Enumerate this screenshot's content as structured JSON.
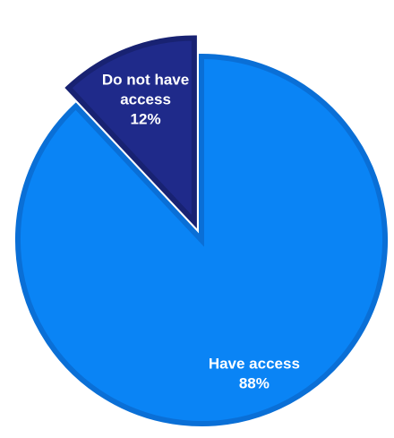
{
  "chart_data": {
    "type": "pie",
    "title": "",
    "slices": [
      {
        "label": "Have access",
        "value": 88,
        "value_label": "88%",
        "color": "#0A84F5",
        "border_color": "#0A6FD6",
        "exploded": false
      },
      {
        "label": "Do not have access",
        "label_lines": [
          "Do not have",
          "access"
        ],
        "value": 12,
        "value_label": "12%",
        "color": "#1F2A8A",
        "border_color": "#182272",
        "exploded": true
      }
    ],
    "legend": "none",
    "start_angle_deg": 0,
    "direction": "clockwise"
  }
}
